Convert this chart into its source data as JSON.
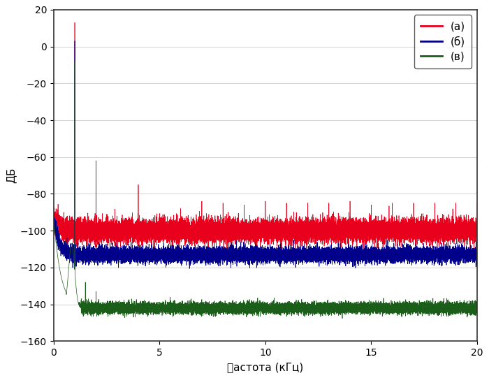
{
  "title": "",
  "xlabel": "䉺астота (кГц)",
  "ylabel": "ДБ",
  "xlim": [
    0,
    20
  ],
  "ylim": [
    -160,
    20
  ],
  "yticks": [
    20,
    0,
    -20,
    -40,
    -60,
    -80,
    -100,
    -120,
    -140,
    -160
  ],
  "xticks": [
    0,
    5,
    10,
    15,
    20
  ],
  "legend_labels": [
    "(а)",
    "(б)",
    "(в)"
  ],
  "colors": [
    "#e8001c",
    "#00008b",
    "#1a5e1a"
  ],
  "bg_color": "#ffffff",
  "fundamental_freq": 1.0,
  "red_noise_floor": -100,
  "blue_noise_floor": -113,
  "green_noise_floor": -142,
  "red_main_peak": 13,
  "blue_main_peak": 3,
  "green_main_peak": -8,
  "red_harmonics": [
    [
      2.0,
      -62
    ],
    [
      3.0,
      -92
    ],
    [
      4.0,
      -75
    ],
    [
      5.0,
      -91
    ],
    [
      6.0,
      -88
    ],
    [
      7.0,
      -84
    ],
    [
      8.0,
      -85
    ],
    [
      9.0,
      -86
    ],
    [
      10.0,
      -84
    ],
    [
      11.0,
      -85
    ],
    [
      12.0,
      -85
    ],
    [
      13.0,
      -85
    ],
    [
      14.0,
      -84
    ],
    [
      15.0,
      -86
    ],
    [
      16.0,
      -85
    ],
    [
      17.0,
      -85
    ],
    [
      18.0,
      -85
    ],
    [
      19.0,
      -85
    ],
    [
      20.0,
      -85
    ]
  ],
  "green_harmonics": [
    [
      1.5,
      -128
    ],
    [
      2.0,
      -133
    ],
    [
      5.5,
      -136
    ],
    [
      6.5,
      -137
    ]
  ],
  "grid_color": "#999999",
  "seed": 42
}
